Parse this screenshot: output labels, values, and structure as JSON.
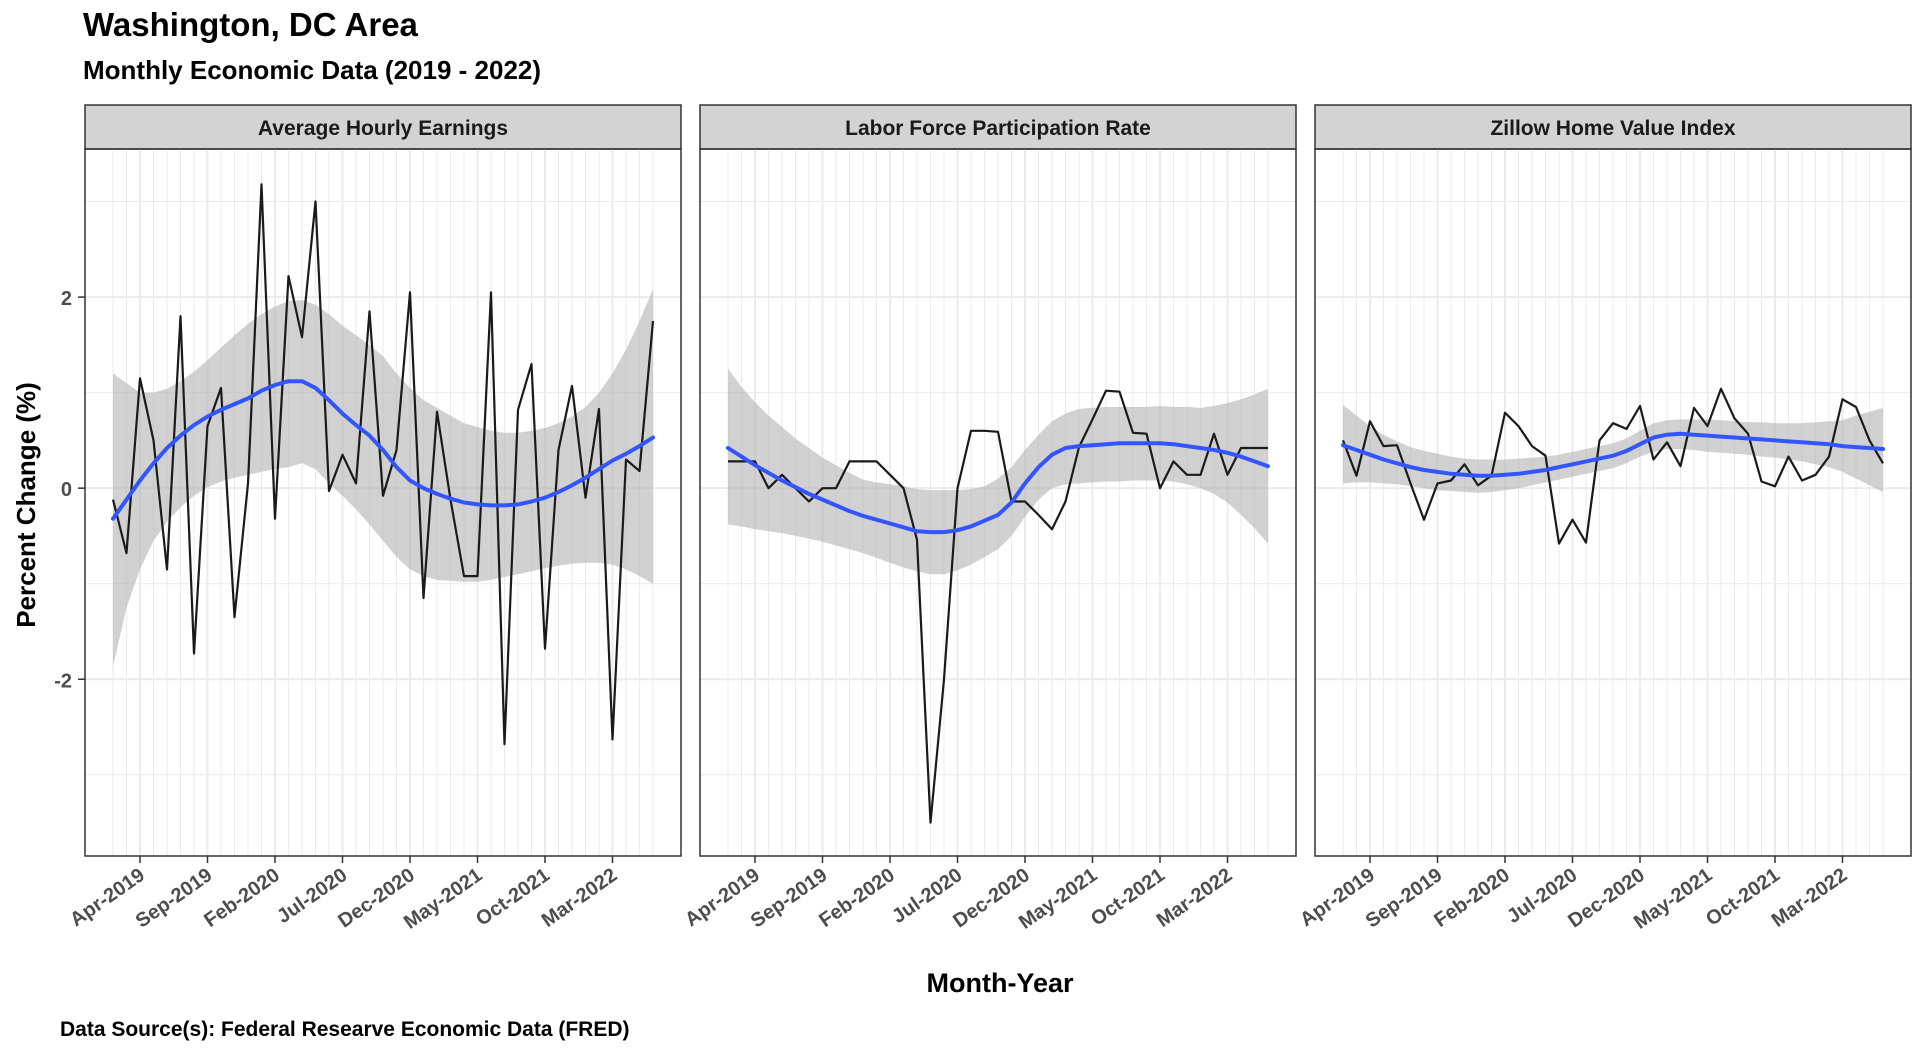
{
  "title": "Washington, DC Area",
  "subtitle": "Monthly Economic Data (2019 - 2022)",
  "caption": "Data Source(s): Federal Researve Economic Data (FRED)",
  "chart_data": {
    "type": "line",
    "xlabel": "Month-Year",
    "ylabel": "Percent Change (%)",
    "x_tick_labels": [
      "Apr-2019",
      "Sep-2019",
      "Feb-2020",
      "Jul-2020",
      "Dec-2020",
      "May-2021",
      "Oct-2021",
      "Mar-2022"
    ],
    "y_ticks": [
      -2,
      0,
      2
    ],
    "ylim": [
      -3.85,
      3.55
    ],
    "grid": true,
    "colors": {
      "data_line": "#1a1a1a",
      "smooth_line": "#3355ff",
      "ribbon": "#b3b3b3",
      "strip": "#d3d3d3",
      "grid": "#ebebeb"
    },
    "x": [
      "Feb-2019",
      "Mar-2019",
      "Apr-2019",
      "May-2019",
      "Jun-2019",
      "Jul-2019",
      "Aug-2019",
      "Sep-2019",
      "Oct-2019",
      "Nov-2019",
      "Dec-2019",
      "Jan-2020",
      "Feb-2020",
      "Mar-2020",
      "Apr-2020",
      "May-2020",
      "Jun-2020",
      "Jul-2020",
      "Aug-2020",
      "Sep-2020",
      "Oct-2020",
      "Nov-2020",
      "Dec-2020",
      "Jan-2021",
      "Feb-2021",
      "Mar-2021",
      "Apr-2021",
      "May-2021",
      "Jun-2021",
      "Jul-2021",
      "Aug-2021",
      "Sep-2021",
      "Oct-2021",
      "Nov-2021",
      "Dec-2021",
      "Jan-2022",
      "Feb-2022",
      "Mar-2022",
      "Apr-2022",
      "May-2022",
      "Jun-2022"
    ],
    "panels": [
      {
        "name": "Average Hourly Earnings",
        "values": [
          -0.12,
          -0.68,
          1.15,
          0.5,
          -0.85,
          1.8,
          -1.73,
          0.65,
          1.05,
          -1.35,
          0.05,
          3.18,
          -0.32,
          2.22,
          1.58,
          3.0,
          -0.03,
          0.35,
          0.05,
          1.85,
          -0.08,
          0.4,
          2.05,
          -1.15,
          0.8,
          -0.12,
          -0.92,
          -0.92,
          2.05,
          -2.68,
          0.82,
          1.3,
          -1.68,
          0.4,
          1.07,
          -0.1,
          0.83,
          -2.63,
          0.3,
          0.18,
          1.75
        ],
        "smooth": [
          -0.32,
          -0.12,
          0.08,
          0.26,
          0.42,
          0.55,
          0.66,
          0.75,
          0.82,
          0.88,
          0.94,
          1.02,
          1.08,
          1.12,
          1.12,
          1.05,
          0.92,
          0.78,
          0.66,
          0.55,
          0.4,
          0.22,
          0.08,
          0.0,
          -0.06,
          -0.11,
          -0.15,
          -0.17,
          -0.18,
          -0.18,
          -0.17,
          -0.14,
          -0.1,
          -0.04,
          0.03,
          0.11,
          0.2,
          0.29,
          0.36,
          0.44,
          0.53
        ],
        "ribbon_low": [
          -1.87,
          -1.25,
          -0.85,
          -0.55,
          -0.35,
          -0.2,
          -0.08,
          0.01,
          0.07,
          0.11,
          0.14,
          0.17,
          0.2,
          0.22,
          0.26,
          0.2,
          0.05,
          -0.08,
          -0.22,
          -0.38,
          -0.55,
          -0.72,
          -0.85,
          -0.92,
          -0.96,
          -0.97,
          -0.98,
          -0.98,
          -0.96,
          -0.93,
          -0.9,
          -0.87,
          -0.84,
          -0.81,
          -0.79,
          -0.78,
          -0.78,
          -0.8,
          -0.85,
          -0.92,
          -1.0
        ],
        "ribbon_high": [
          1.2,
          1.1,
          1.0,
          1.0,
          1.04,
          1.12,
          1.22,
          1.34,
          1.47,
          1.6,
          1.72,
          1.82,
          1.9,
          1.96,
          1.97,
          1.92,
          1.82,
          1.7,
          1.6,
          1.5,
          1.38,
          1.2,
          1.05,
          0.92,
          0.84,
          0.76,
          0.68,
          0.64,
          0.6,
          0.58,
          0.58,
          0.6,
          0.63,
          0.68,
          0.75,
          0.85,
          1.0,
          1.2,
          1.45,
          1.75,
          2.08
        ]
      },
      {
        "name": "Labor Force Participation Rate",
        "values": [
          0.28,
          0.28,
          0.28,
          0.0,
          0.14,
          0.0,
          -0.14,
          0.0,
          0.0,
          0.28,
          0.28,
          0.28,
          0.14,
          0.0,
          -0.54,
          -3.5,
          -2.0,
          0.0,
          0.6,
          0.6,
          0.59,
          -0.14,
          -0.14,
          -0.28,
          -0.43,
          -0.14,
          0.43,
          0.72,
          1.02,
          1.01,
          0.58,
          0.57,
          0.0,
          0.28,
          0.14,
          0.14,
          0.57,
          0.14,
          0.42,
          0.42,
          0.42
        ],
        "smooth": [
          0.42,
          0.33,
          0.24,
          0.16,
          0.08,
          0.01,
          -0.06,
          -0.12,
          -0.18,
          -0.24,
          -0.29,
          -0.33,
          -0.37,
          -0.41,
          -0.45,
          -0.46,
          -0.46,
          -0.44,
          -0.4,
          -0.34,
          -0.28,
          -0.15,
          0.05,
          0.22,
          0.35,
          0.42,
          0.44,
          0.45,
          0.46,
          0.47,
          0.47,
          0.47,
          0.47,
          0.46,
          0.44,
          0.42,
          0.4,
          0.37,
          0.33,
          0.28,
          0.23
        ],
        "ribbon_low": [
          -0.38,
          -0.4,
          -0.43,
          -0.45,
          -0.47,
          -0.5,
          -0.53,
          -0.56,
          -0.6,
          -0.64,
          -0.68,
          -0.73,
          -0.78,
          -0.83,
          -0.87,
          -0.9,
          -0.9,
          -0.86,
          -0.8,
          -0.72,
          -0.64,
          -0.5,
          -0.3,
          -0.12,
          0.0,
          0.04,
          0.05,
          0.06,
          0.07,
          0.07,
          0.08,
          0.08,
          0.08,
          0.07,
          0.04,
          0.0,
          -0.06,
          -0.15,
          -0.28,
          -0.42,
          -0.58
        ],
        "ribbon_high": [
          1.25,
          1.06,
          0.9,
          0.76,
          0.64,
          0.52,
          0.42,
          0.32,
          0.24,
          0.16,
          0.09,
          0.06,
          0.04,
          0.02,
          -0.01,
          -0.02,
          -0.02,
          -0.02,
          -0.01,
          0.02,
          0.1,
          0.22,
          0.4,
          0.56,
          0.7,
          0.78,
          0.83,
          0.84,
          0.85,
          0.85,
          0.85,
          0.85,
          0.86,
          0.85,
          0.85,
          0.84,
          0.86,
          0.89,
          0.93,
          0.98,
          1.04
        ]
      },
      {
        "name": "Zillow Home Value Index",
        "values": [
          0.5,
          0.13,
          0.7,
          0.44,
          0.45,
          0.05,
          -0.33,
          0.05,
          0.08,
          0.25,
          0.03,
          0.13,
          0.79,
          0.65,
          0.44,
          0.34,
          -0.58,
          -0.33,
          -0.57,
          0.5,
          0.68,
          0.62,
          0.86,
          0.3,
          0.48,
          0.23,
          0.84,
          0.65,
          1.04,
          0.73,
          0.57,
          0.07,
          0.02,
          0.33,
          0.08,
          0.14,
          0.33,
          0.93,
          0.85,
          0.5,
          0.26
        ],
        "smooth": [
          0.45,
          0.4,
          0.35,
          0.3,
          0.26,
          0.22,
          0.19,
          0.17,
          0.15,
          0.14,
          0.13,
          0.13,
          0.14,
          0.15,
          0.17,
          0.19,
          0.22,
          0.25,
          0.28,
          0.31,
          0.34,
          0.39,
          0.46,
          0.53,
          0.56,
          0.57,
          0.56,
          0.55,
          0.54,
          0.53,
          0.52,
          0.51,
          0.5,
          0.49,
          0.48,
          0.47,
          0.46,
          0.44,
          0.43,
          0.42,
          0.41
        ],
        "ribbon_low": [
          0.05,
          0.06,
          0.06,
          0.05,
          0.04,
          0.02,
          0.0,
          -0.02,
          -0.03,
          -0.04,
          -0.05,
          -0.04,
          -0.02,
          0.0,
          0.03,
          0.06,
          0.09,
          0.12,
          0.15,
          0.18,
          0.21,
          0.26,
          0.33,
          0.38,
          0.41,
          0.41,
          0.4,
          0.38,
          0.37,
          0.36,
          0.35,
          0.33,
          0.32,
          0.3,
          0.28,
          0.25,
          0.22,
          0.17,
          0.1,
          0.03,
          -0.04
        ],
        "ribbon_high": [
          0.87,
          0.76,
          0.65,
          0.56,
          0.49,
          0.43,
          0.39,
          0.36,
          0.33,
          0.31,
          0.3,
          0.3,
          0.3,
          0.31,
          0.32,
          0.33,
          0.35,
          0.38,
          0.41,
          0.44,
          0.47,
          0.52,
          0.6,
          0.68,
          0.71,
          0.72,
          0.72,
          0.72,
          0.71,
          0.7,
          0.69,
          0.69,
          0.68,
          0.68,
          0.68,
          0.69,
          0.7,
          0.71,
          0.76,
          0.8,
          0.84
        ]
      }
    ]
  }
}
